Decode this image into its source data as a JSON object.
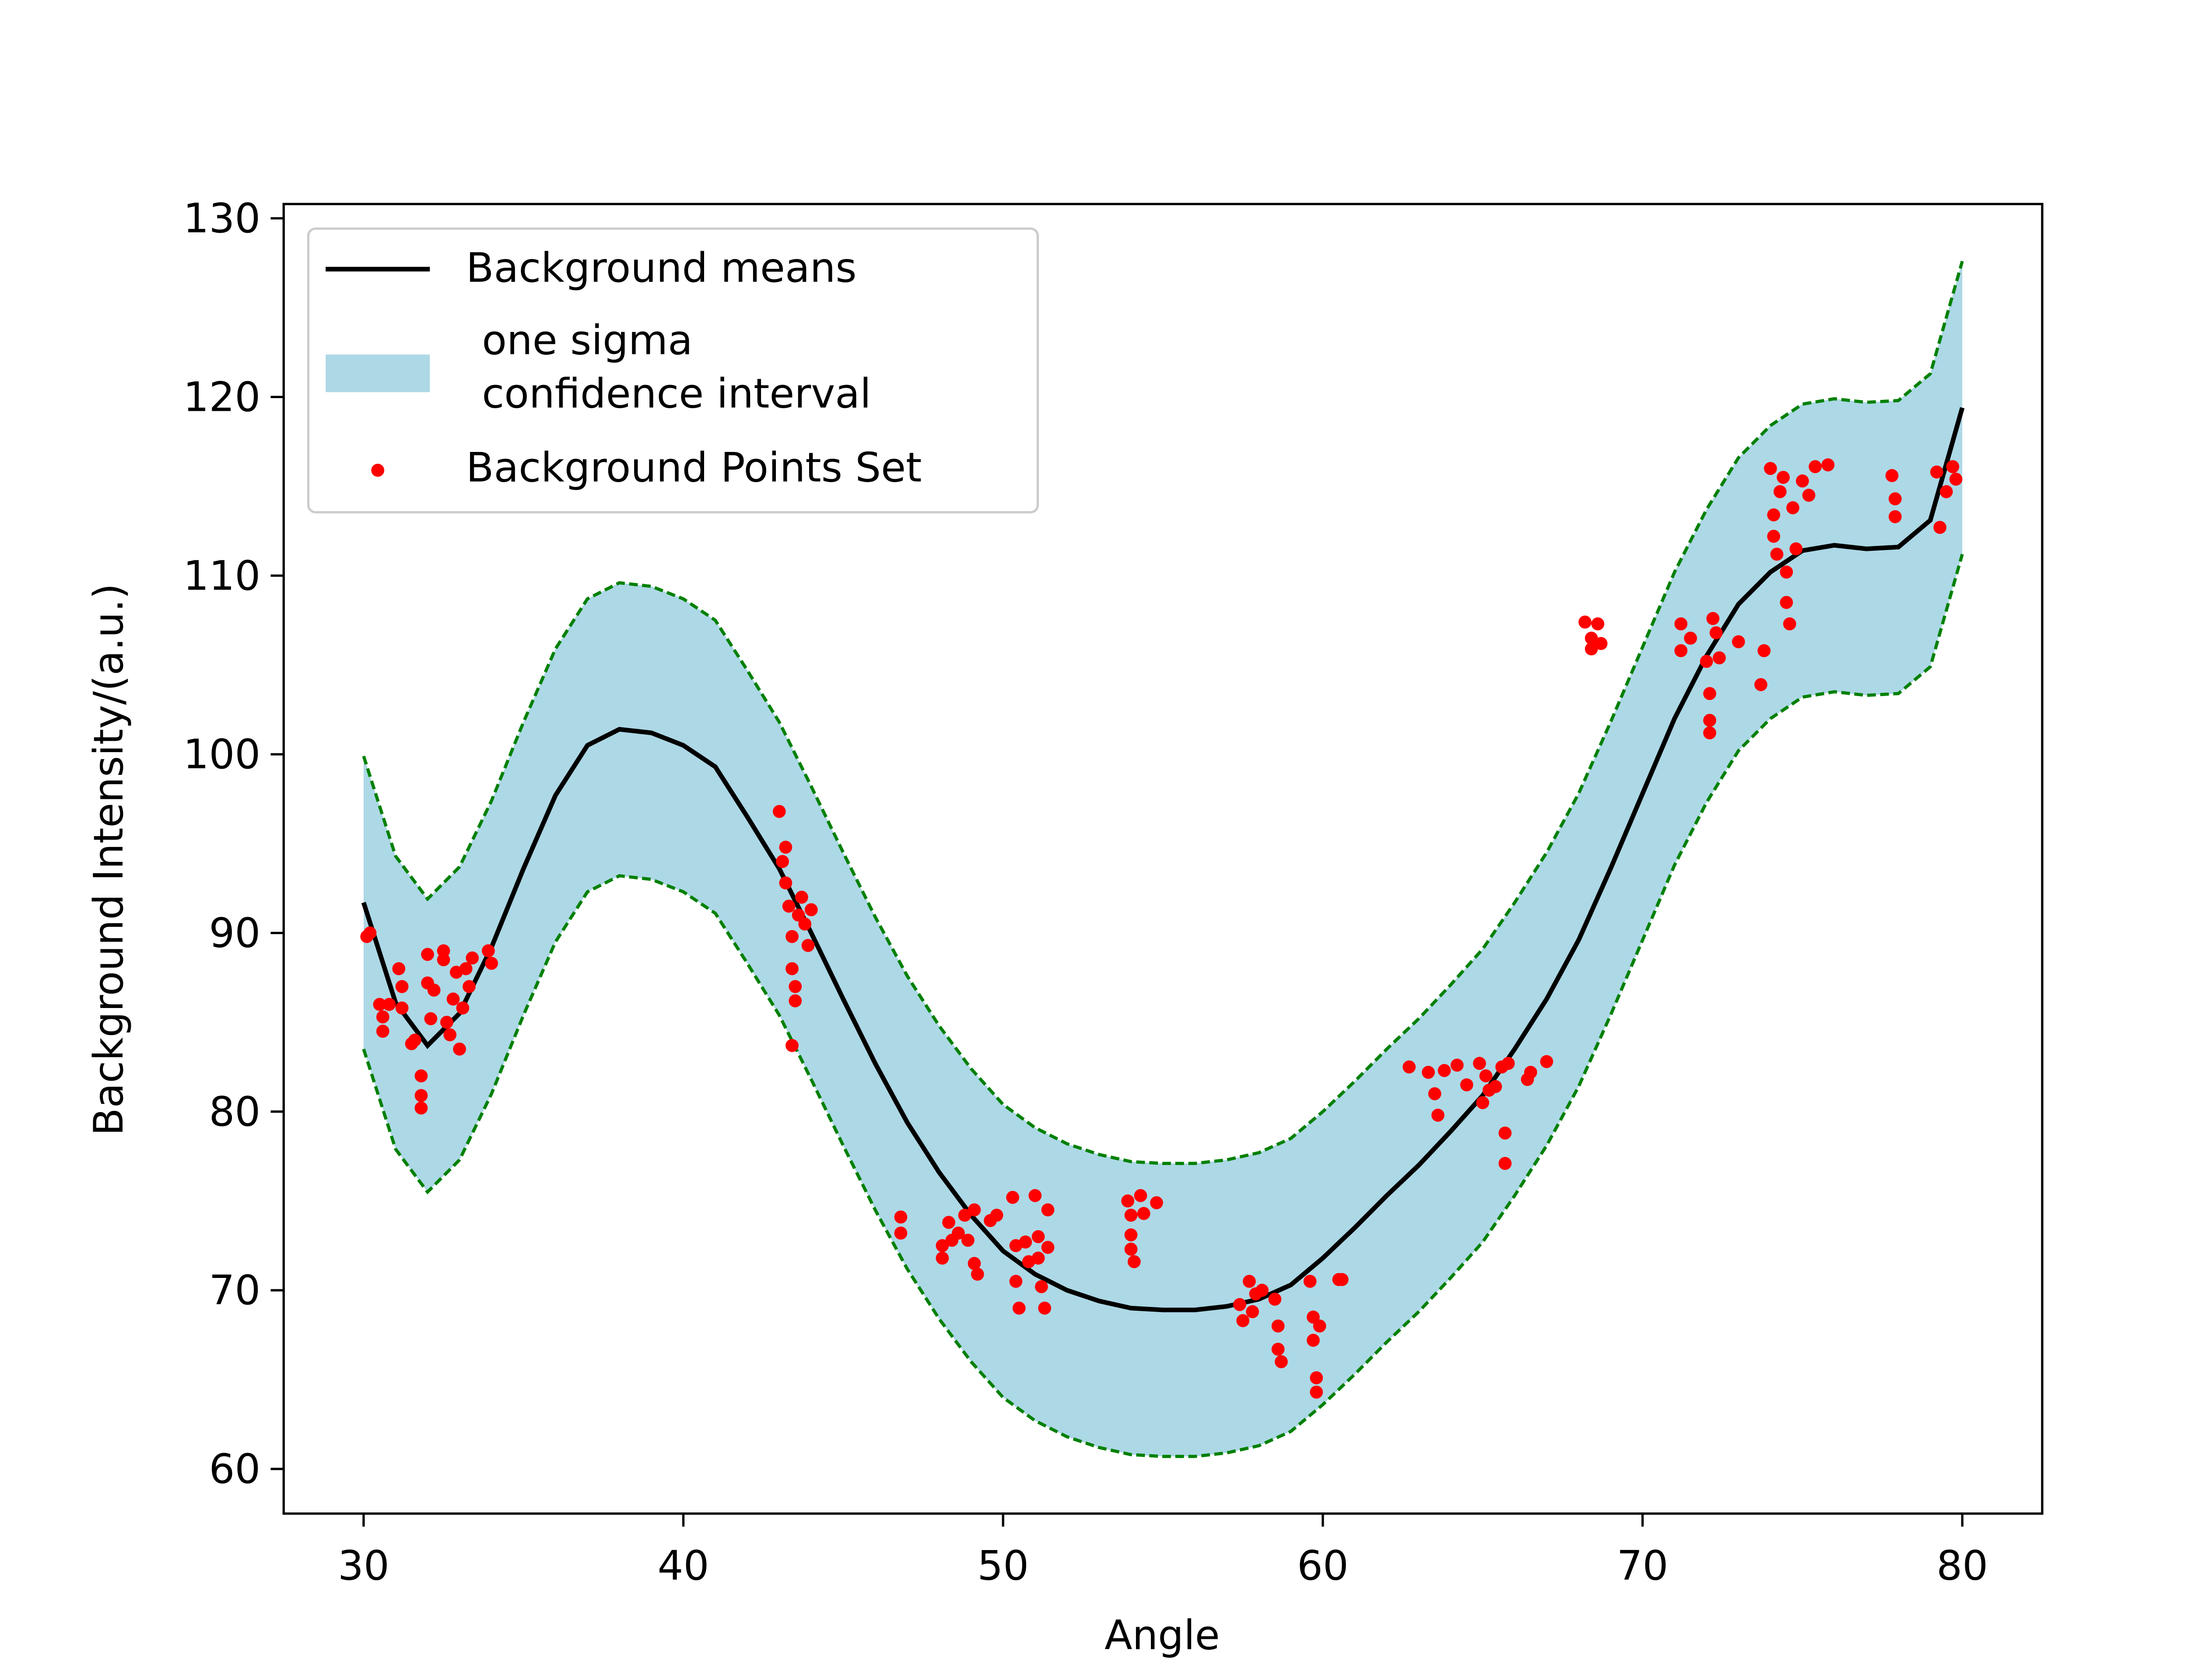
{
  "chart_data": {
    "type": "line",
    "xlabel": "Angle",
    "ylabel": "Background Intensity/(a.u.)",
    "xlim": [
      27.5,
      82.5
    ],
    "ylim": [
      57.5,
      130.8
    ],
    "xticks": [
      30,
      40,
      50,
      60,
      70,
      80
    ],
    "yticks": [
      60,
      70,
      80,
      90,
      100,
      110,
      120,
      130
    ],
    "legend": "upper left",
    "series": [
      {
        "name": "Background means",
        "color": "#000000",
        "x": [
          30,
          31,
          32,
          33,
          34,
          35,
          36,
          37,
          38,
          39,
          40,
          41,
          42,
          43,
          44,
          45,
          46,
          47,
          48,
          49,
          50,
          51,
          52,
          53,
          54,
          55,
          56,
          57,
          58,
          59,
          60,
          61,
          62,
          63,
          64,
          65,
          66,
          67,
          68,
          69,
          70,
          71,
          72,
          73,
          74,
          75,
          76,
          77,
          78,
          79,
          80
        ],
        "values": [
          91.7,
          86.1,
          83.7,
          85.5,
          89.2,
          93.6,
          97.7,
          100.5,
          101.4,
          101.2,
          100.5,
          99.3,
          96.5,
          93.6,
          90,
          86.3,
          82.7,
          79.4,
          76.6,
          74.2,
          72.2,
          70.9,
          70,
          69.4,
          69,
          68.9,
          68.9,
          69.1,
          69.5,
          70.3,
          71.8,
          73.5,
          75.3,
          77,
          78.9,
          80.9,
          83.5,
          86.3,
          89.6,
          93.6,
          97.8,
          102,
          105.5,
          108.4,
          110.2,
          111.4,
          111.7,
          111.5,
          111.6,
          113.1,
          119.4
        ]
      }
    ],
    "band": {
      "name": [
        "one sigma",
        "confidence interval"
      ],
      "fill": "#add8e6",
      "edge_color": "#008000",
      "x": [
        30,
        31,
        32,
        33,
        34,
        35,
        36,
        37,
        38,
        39,
        40,
        41,
        42,
        43,
        44,
        45,
        46,
        47,
        48,
        49,
        50,
        51,
        52,
        53,
        54,
        55,
        56,
        57,
        58,
        59,
        60,
        61,
        62,
        63,
        64,
        65,
        66,
        67,
        68,
        69,
        70,
        71,
        72,
        73,
        74,
        75,
        76,
        77,
        78,
        79,
        80
      ],
      "upper": [
        99.9,
        94.3,
        91.9,
        93.7,
        97.4,
        101.8,
        105.9,
        108.7,
        109.6,
        109.4,
        108.7,
        107.5,
        104.7,
        101.8,
        98.2,
        94.5,
        90.9,
        87.6,
        84.8,
        82.4,
        80.4,
        79.1,
        78.2,
        77.6,
        77.2,
        77.1,
        77.1,
        77.3,
        77.7,
        78.5,
        80,
        81.7,
        83.5,
        85.2,
        87.1,
        89.1,
        91.7,
        94.5,
        97.8,
        101.8,
        106,
        110.2,
        113.7,
        116.6,
        118.4,
        119.6,
        119.9,
        119.7,
        119.8,
        121.3,
        127.6
      ],
      "lower": [
        83.5,
        77.9,
        75.5,
        77.3,
        81,
        85.4,
        89.5,
        92.3,
        93.2,
        93,
        92.3,
        91.1,
        88.3,
        85.4,
        81.8,
        78.1,
        74.5,
        71.2,
        68.4,
        66,
        64,
        62.7,
        61.8,
        61.2,
        60.8,
        60.7,
        60.7,
        60.9,
        61.3,
        62.1,
        63.6,
        65.3,
        67.1,
        68.8,
        70.7,
        72.7,
        75.3,
        78.1,
        81.4,
        85.4,
        89.6,
        93.8,
        97.3,
        100.2,
        102,
        103.2,
        103.5,
        103.3,
        103.4,
        104.9,
        111.2
      ]
    },
    "scatter": {
      "name": "Background Points Set",
      "color": "#ff0000",
      "x": [
        30.1,
        30.2,
        30.5,
        30.6,
        30.6,
        30.8,
        31.1,
        31.2,
        31.2,
        31.5,
        31.6,
        31.8,
        31.8,
        31.8,
        32,
        32,
        32.1,
        32.2,
        32.5,
        32.5,
        32.6,
        32.7,
        32.8,
        32.9,
        33,
        33.1,
        33.2,
        33.3,
        33.4,
        33.9,
        34,
        43,
        43.1,
        43.2,
        43.2,
        43.3,
        43.4,
        43.4,
        43.4,
        43.5,
        43.5,
        43.6,
        43.7,
        43.8,
        43.9,
        44,
        46.8,
        46.8,
        48.1,
        48.1,
        48.3,
        48.4,
        48.6,
        48.8,
        48.9,
        49.1,
        49.1,
        49.2,
        49.6,
        49.8,
        50.3,
        50.4,
        50.4,
        50.5,
        50.7,
        50.8,
        51,
        51.1,
        51.1,
        51.2,
        51.3,
        51.4,
        51.4,
        53.9,
        54,
        54,
        54,
        54.1,
        54.3,
        54.4,
        54.8,
        57.4,
        57.5,
        57.7,
        57.8,
        57.9,
        58.1,
        58.5,
        58.6,
        58.6,
        58.7,
        59.6,
        59.7,
        59.7,
        59.8,
        59.8,
        59.9,
        60.5,
        60.6,
        62.7,
        63.3,
        63.5,
        63.6,
        63.8,
        64.2,
        64.5,
        64.9,
        65,
        65.1,
        65.2,
        65.4,
        65.6,
        65.7,
        65.7,
        65.8,
        66.4,
        66.5,
        67,
        68.2,
        68.4,
        68.4,
        68.6,
        68.7,
        71.2,
        71.2,
        71.5,
        72,
        72.1,
        72.1,
        72.1,
        72.2,
        72.3,
        72.4,
        73,
        73.7,
        73.8,
        74,
        74.1,
        74.1,
        74.2,
        74.3,
        74.4,
        74.5,
        74.5,
        74.6,
        74.7,
        74.8,
        75,
        75.2,
        75.4,
        75.8,
        77.8,
        77.9,
        77.9,
        79.2,
        79.3,
        79.5,
        79.7,
        79.8
      ],
      "y": [
        89.8,
        90,
        86,
        85.3,
        84.5,
        86,
        88,
        87,
        85.8,
        83.8,
        84,
        82,
        80.9,
        80.2,
        88.8,
        87.2,
        85.2,
        86.8,
        89,
        88.5,
        85,
        84.3,
        86.3,
        87.8,
        83.5,
        85.8,
        88,
        87,
        88.6,
        89,
        88.3,
        96.8,
        94,
        94.8,
        92.8,
        91.5,
        89.8,
        88,
        83.7,
        86.2,
        87,
        91,
        92,
        90.5,
        89.3,
        91.3,
        74.1,
        73.2,
        72.5,
        71.8,
        73.8,
        72.8,
        73.2,
        74.2,
        72.8,
        71.5,
        74.5,
        70.9,
        73.9,
        74.2,
        75.2,
        72.5,
        70.5,
        69,
        72.7,
        71.6,
        75.3,
        73,
        71.8,
        70.2,
        69,
        74.5,
        72.4,
        75,
        74.2,
        73.1,
        72.3,
        71.6,
        75.3,
        74.3,
        74.9,
        69.2,
        68.3,
        70.5,
        68.8,
        69.8,
        70,
        69.5,
        68,
        66.7,
        66,
        70.5,
        68.5,
        67.2,
        65.1,
        64.3,
        68,
        70.6,
        70.6,
        82.5,
        82.2,
        81,
        79.8,
        82.3,
        82.6,
        81.5,
        82.7,
        80.5,
        82,
        81.2,
        81.4,
        82.5,
        77.1,
        78.8,
        82.7,
        81.8,
        82.2,
        82.8,
        107.4,
        106.5,
        105.9,
        107.3,
        106.2,
        107.3,
        105.8,
        106.5,
        105.2,
        103.4,
        101.2,
        101.9,
        107.6,
        106.8,
        105.4,
        106.3,
        103.9,
        105.8,
        116,
        113.4,
        112.2,
        111.2,
        114.7,
        115.5,
        110.2,
        108.5,
        107.3,
        113.8,
        111.5,
        115.3,
        114.5,
        116.1,
        116.2,
        115.6,
        114.3,
        113.3,
        115.8,
        112.7,
        114.7,
        116.1,
        115.4
      ]
    }
  }
}
